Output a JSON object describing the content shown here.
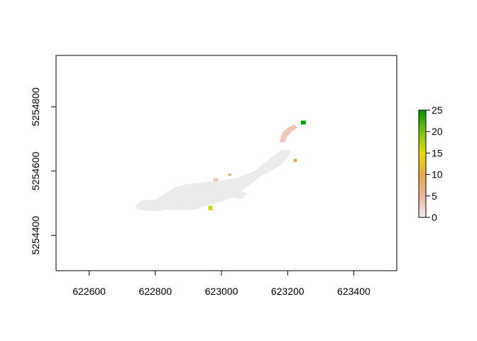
{
  "chart_data": {
    "type": "heatmap",
    "title": "",
    "xlabel": "",
    "ylabel": "",
    "xlim": [
      622500,
      623530
    ],
    "ylim": [
      5254290,
      5254960
    ],
    "x_ticks": [
      622600,
      622800,
      623000,
      623200,
      623400
    ],
    "y_ticks": [
      5254400,
      5254600,
      5254800
    ],
    "x_tick_labels": [
      "622600",
      "622800",
      "623000",
      "623200",
      "623400"
    ],
    "y_tick_labels": [
      "5254400",
      "5254600",
      "5254800"
    ],
    "legend": {
      "placement": "right",
      "min": 0,
      "max": 25,
      "ticks": [
        0,
        5,
        10,
        15,
        20,
        25
      ],
      "tick_labels": [
        "0",
        "5",
        "10",
        "15",
        "20",
        "25"
      ],
      "colors": [
        "#f2f2f2",
        "#eab59e",
        "#e8a84a",
        "#e5dc0d",
        "#7cc10f",
        "#009a00"
      ]
    },
    "grid": false,
    "cell_size": 10,
    "regions": [
      {
        "value": 0,
        "points": [
          [
            622740,
            5254495
          ],
          [
            622760,
            5254508
          ],
          [
            622800,
            5254512
          ],
          [
            622830,
            5254530
          ],
          [
            622860,
            5254550
          ],
          [
            622900,
            5254560
          ],
          [
            622950,
            5254565
          ],
          [
            623000,
            5254570
          ],
          [
            623050,
            5254580
          ],
          [
            623100,
            5254600
          ],
          [
            623130,
            5254625
          ],
          [
            623160,
            5254650
          ],
          [
            623180,
            5254665
          ],
          [
            623210,
            5254665
          ],
          [
            623200,
            5254640
          ],
          [
            623180,
            5254620
          ],
          [
            623150,
            5254600
          ],
          [
            623120,
            5254585
          ],
          [
            623090,
            5254560
          ],
          [
            623060,
            5254540
          ],
          [
            623030,
            5254515
          ],
          [
            623010,
            5254510
          ],
          [
            622980,
            5254500
          ],
          [
            622950,
            5254490
          ],
          [
            622920,
            5254480
          ],
          [
            622880,
            5254478
          ],
          [
            622840,
            5254480
          ],
          [
            622800,
            5254475
          ],
          [
            622760,
            5254478
          ],
          [
            622745,
            5254482
          ]
        ]
      },
      {
        "value": 0,
        "points": [
          [
            622900,
            5254505
          ],
          [
            622960,
            5254520
          ],
          [
            623000,
            5254530
          ],
          [
            622980,
            5254545
          ],
          [
            622940,
            5254555
          ],
          [
            622910,
            5254540
          ]
        ]
      },
      {
        "value": 0,
        "points": [
          [
            623020,
            5254520
          ],
          [
            623060,
            5254512
          ],
          [
            623080,
            5254530
          ],
          [
            623050,
            5254545
          ]
        ]
      },
      {
        "value": 3.5,
        "points": [
          [
            623175,
            5254690
          ],
          [
            623185,
            5254720
          ],
          [
            623200,
            5254735
          ],
          [
            623220,
            5254745
          ],
          [
            623230,
            5254735
          ],
          [
            623215,
            5254725
          ],
          [
            623200,
            5254710
          ],
          [
            623190,
            5254690
          ]
        ]
      },
      {
        "value": 3.5,
        "points": [
          [
            622975,
            5254568
          ],
          [
            622990,
            5254568
          ],
          [
            622990,
            5254578
          ],
          [
            622975,
            5254578
          ]
        ]
      },
      {
        "value": 7.5,
        "points": [
          [
            623020,
            5254585
          ],
          [
            623030,
            5254585
          ],
          [
            623030,
            5254592
          ],
          [
            623020,
            5254592
          ]
        ]
      },
      {
        "value": 10,
        "points": [
          [
            623218,
            5254628
          ],
          [
            623228,
            5254628
          ],
          [
            623228,
            5254638
          ],
          [
            623218,
            5254638
          ]
        ]
      },
      {
        "value": 16,
        "points": [
          [
            622960,
            5254478
          ],
          [
            622972,
            5254478
          ],
          [
            622972,
            5254492
          ],
          [
            622960,
            5254492
          ]
        ]
      },
      {
        "value": 25,
        "points": [
          [
            623240,
            5254745
          ],
          [
            623255,
            5254745
          ],
          [
            623255,
            5254757
          ],
          [
            623240,
            5254757
          ]
        ]
      }
    ]
  }
}
